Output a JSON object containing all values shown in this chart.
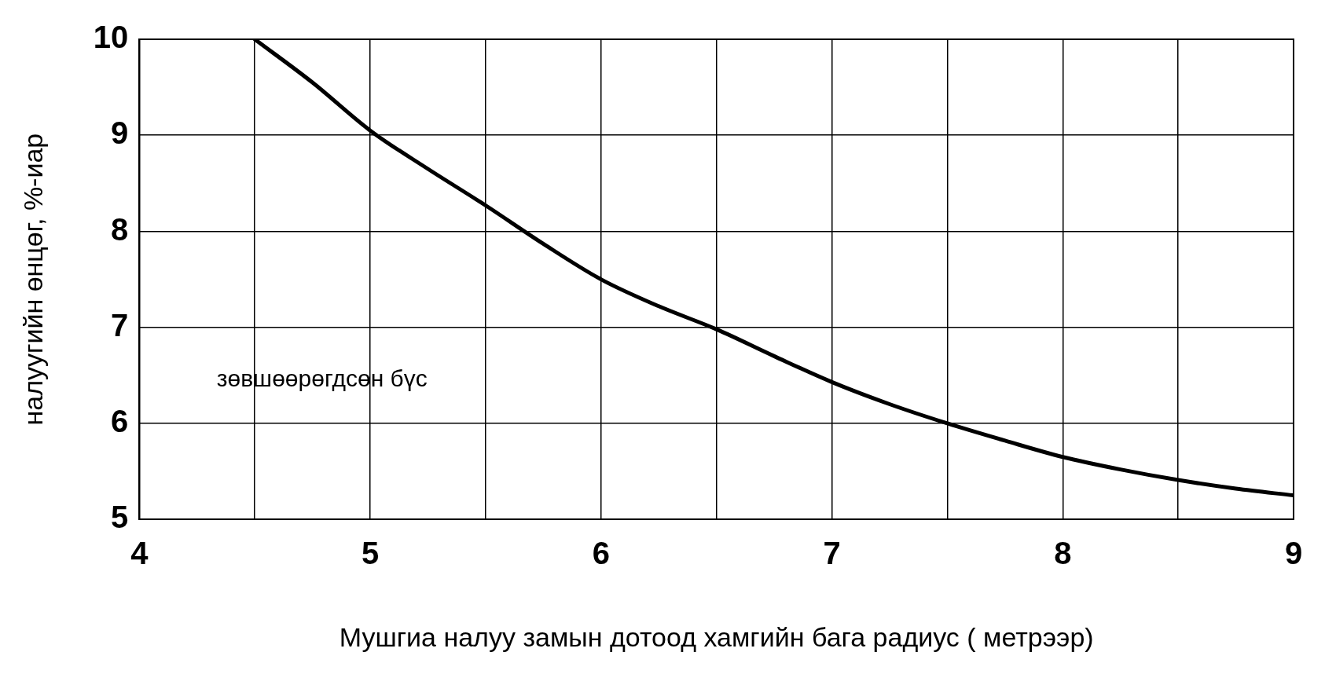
{
  "chart_data": {
    "type": "line",
    "xlabel": "Мушгиа налуу замын дотоод хамгийн бага радиус ( метрээр)",
    "ylabel": "налуугийн өнцөг, %-иар",
    "x": [
      4.5,
      4.75,
      5,
      5.25,
      5.5,
      5.75,
      6,
      6.25,
      6.5,
      6.75,
      7,
      7.25,
      7.5,
      7.75,
      8,
      8.25,
      8.5,
      8.75,
      9
    ],
    "series": [
      {
        "color": "#000000",
        "values": [
          10,
          9.55,
          9.05,
          8.65,
          8.27,
          7.87,
          7.5,
          7.22,
          6.98,
          6.7,
          6.43,
          6.2,
          6.0,
          5.82,
          5.65,
          5.52,
          5.41,
          5.32,
          5.25
        ]
      }
    ],
    "xlim": [
      4,
      9
    ],
    "ylim": [
      5,
      10
    ],
    "xticks": [
      4,
      {
        "value": 4.5,
        "label": null
      },
      5,
      {
        "value": 5.5,
        "label": null
      },
      6,
      {
        "value": 6.5,
        "label": null
      },
      7,
      {
        "value": 7.5,
        "label": null
      },
      8,
      {
        "value": 8.5,
        "label": null
      },
      9
    ],
    "yticks": [
      5,
      6,
      7,
      8,
      9,
      10
    ],
    "annotations": [
      "зөвшөөрөгдсөн бүс"
    ],
    "grid": true,
    "legend": false,
    "marker": "none",
    "line_style": "solid"
  }
}
